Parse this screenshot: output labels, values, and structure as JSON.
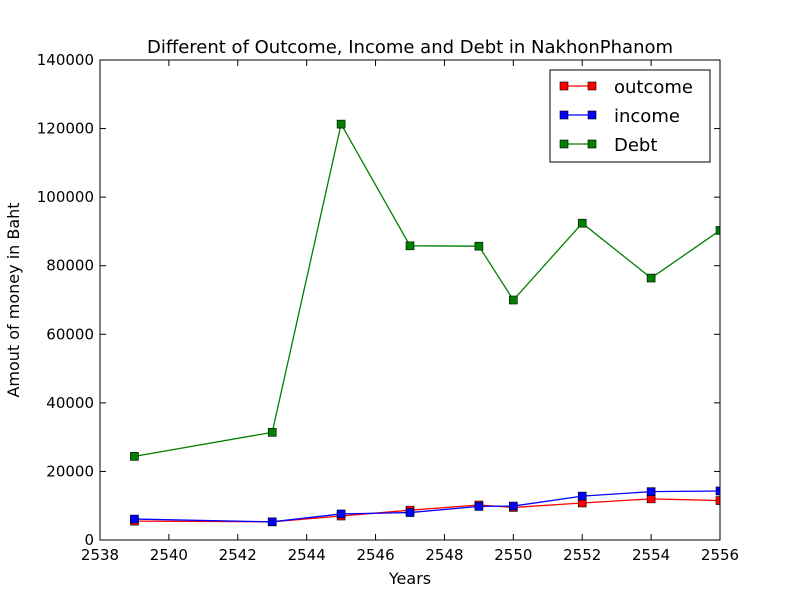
{
  "chart_data": {
    "type": "line",
    "title": "Different of Outcome, Income and Debt in NakhonPhanom",
    "xlabel": "Years",
    "ylabel": "Amout of money in Baht",
    "xlim": [
      2538,
      2556
    ],
    "ylim": [
      0,
      140000
    ],
    "x_ticks": [
      2538,
      2540,
      2542,
      2544,
      2546,
      2548,
      2550,
      2552,
      2554,
      2556
    ],
    "y_ticks": [
      0,
      20000,
      40000,
      60000,
      80000,
      100000,
      120000,
      140000
    ],
    "grid": false,
    "legend_position": "top-right",
    "x": [
      2539,
      2543,
      2545,
      2547,
      2549,
      2550,
      2552,
      2554,
      2556
    ],
    "series": [
      {
        "name": "outcome",
        "color": "#ff0000",
        "values": [
          5500,
          5300,
          7000,
          8700,
          10200,
          9500,
          10800,
          12000,
          11500
        ]
      },
      {
        "name": "income",
        "color": "#0000ff",
        "values": [
          6100,
          5300,
          7600,
          8000,
          9800,
          9900,
          12800,
          14100,
          14300
        ]
      },
      {
        "name": "Debt",
        "color": "#008000",
        "values": [
          24400,
          31400,
          121300,
          85800,
          85700,
          70000,
          92400,
          76400,
          90300
        ]
      }
    ]
  }
}
